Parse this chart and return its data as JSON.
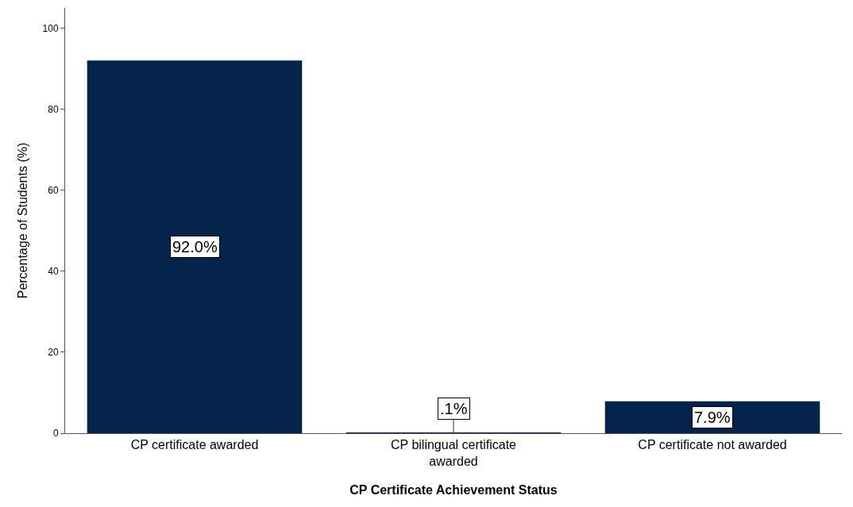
{
  "chart_data": {
    "type": "bar",
    "categories": [
      "CP certificate awarded",
      "CP bilingual certificate awarded",
      "CP certificate not awarded"
    ],
    "values": [
      92.0,
      0.1,
      7.9
    ],
    "value_labels": [
      "92.0%",
      ".1%",
      "7.9%"
    ],
    "color": "#04234a",
    "xlabel": "CP Certificate Achievement Status",
    "ylabel": "Percentage of Students (%)",
    "ylim": [
      0,
      105
    ],
    "yticks": [
      0,
      20,
      40,
      60,
      80,
      100
    ],
    "grid": false
  }
}
